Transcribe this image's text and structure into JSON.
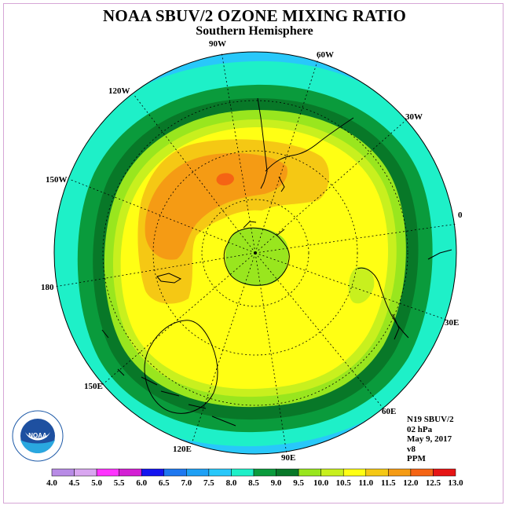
{
  "title": "NOAA SBUV/2 OZONE MIXING RATIO",
  "subtitle": "Southern Hemisphere",
  "longitude_labels": [
    "90W",
    "60W",
    "30W",
    "0",
    "30E",
    "60E",
    "90E",
    "120E",
    "150E",
    "180",
    "150W",
    "120W"
  ],
  "info": {
    "satellite": "N19 SBUV/2",
    "level": "02 hPa",
    "date": "May 9, 2017",
    "version": "v8",
    "units": "PPM"
  },
  "colorbar": {
    "ticks": [
      "4.0",
      "4.5",
      "5.0",
      "5.5",
      "6.0",
      "6.5",
      "7.0",
      "7.5",
      "8.0",
      "8.5",
      "9.0",
      "9.5",
      "10.0",
      "10.5",
      "11.0",
      "11.5",
      "12.0",
      "12.5",
      "13.0"
    ],
    "colors": [
      "#b88be6",
      "#d9a6f0",
      "#ff33ff",
      "#d41fd4",
      "#1414f0",
      "#1e78f0",
      "#1ea0f5",
      "#28c8fa",
      "#1ef0c8",
      "#0a9b3c",
      "#087828",
      "#99e61e",
      "#c8f01e",
      "#ffff14",
      "#f5c814",
      "#f59b14",
      "#f56414",
      "#e61414",
      "#a0522d"
    ]
  },
  "logo_text": "NOAA"
}
